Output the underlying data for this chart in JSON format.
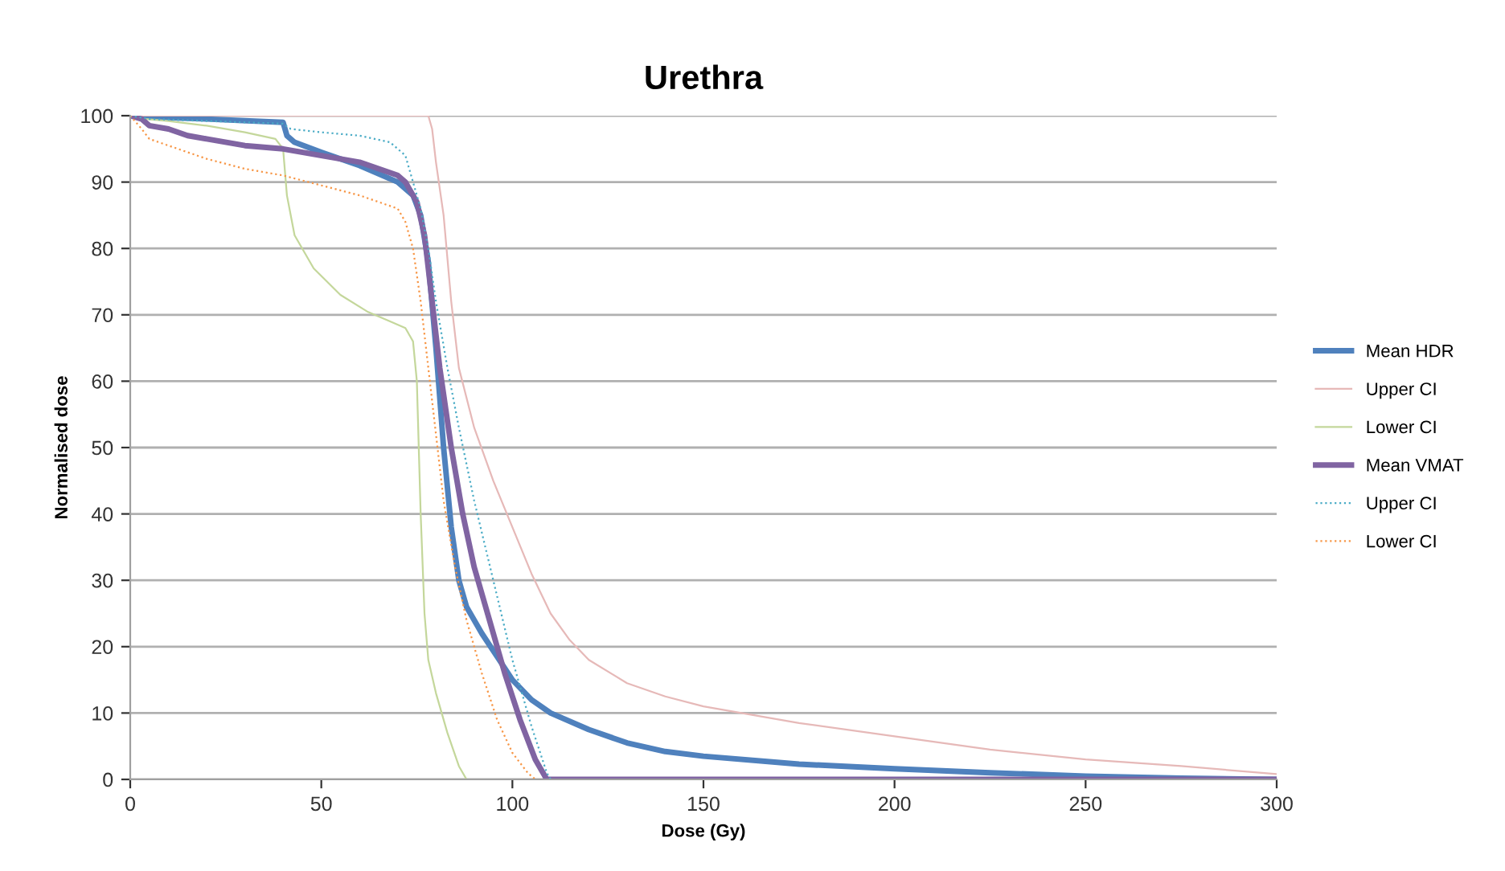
{
  "chart_data": {
    "type": "line",
    "title": "Urethra",
    "xlabel": "Dose (Gy)",
    "ylabel": "Normalised dose",
    "xlim": [
      0,
      300
    ],
    "xticks": [
      0,
      50,
      100,
      150,
      200,
      250,
      300
    ],
    "ylim": [
      0,
      100
    ],
    "yticks": [
      0,
      10,
      20,
      30,
      40,
      50,
      60,
      70,
      80,
      90,
      100
    ],
    "grid": "y",
    "legend": "right",
    "marker": "none",
    "series": [
      {
        "name": "Mean HDR",
        "color": "#4f81bd",
        "line_style": "solid",
        "x": [
          0,
          5,
          20,
          40,
          41,
          43,
          50,
          60,
          70,
          74,
          76,
          78,
          80,
          82,
          84,
          86,
          88,
          92,
          96,
          100,
          105,
          110,
          120,
          130,
          140,
          150,
          175,
          200,
          225,
          250,
          275,
          300
        ],
        "values": [
          100,
          99.8,
          99.5,
          99,
          97,
          96,
          94.5,
          92.5,
          90,
          88,
          85,
          78,
          65,
          50,
          38,
          30,
          26,
          22,
          18.5,
          15,
          12,
          10,
          7.5,
          5.5,
          4.2,
          3.5,
          2.3,
          1.6,
          1,
          0.5,
          0.2,
          0
        ]
      },
      {
        "name": "Upper CI",
        "color": "#e6b9b8",
        "line_style": "solid",
        "x": [
          0,
          5,
          78,
          79,
          80,
          82,
          84,
          86,
          90,
          95,
          100,
          105,
          110,
          115,
          120,
          130,
          140,
          150,
          175,
          200,
          225,
          250,
          275,
          300
        ],
        "values": [
          100,
          100,
          100,
          98,
          93,
          85,
          72,
          62,
          53,
          45,
          38,
          31,
          25,
          21,
          18,
          14.5,
          12.5,
          11,
          8.5,
          6.5,
          4.5,
          3,
          2,
          0.8
        ]
      },
      {
        "name": "Lower CI",
        "color": "#c4d79b",
        "line_style": "solid",
        "x": [
          0,
          4,
          10,
          20,
          30,
          38,
          40,
          41,
          43,
          48,
          55,
          62,
          68,
          72,
          74,
          75,
          76,
          77,
          78,
          80,
          83,
          86,
          88,
          300
        ],
        "values": [
          100,
          99.5,
          99.2,
          98.5,
          97.5,
          96.5,
          95,
          88,
          82,
          77,
          73,
          70.5,
          69,
          68,
          66,
          60,
          40,
          25,
          18,
          13,
          7,
          2,
          0,
          0
        ]
      },
      {
        "name": "Mean VMAT",
        "color": "#8064a2",
        "line_style": "solid",
        "x": [
          0,
          3,
          5,
          10,
          15,
          20,
          30,
          40,
          50,
          60,
          70,
          72,
          75,
          77,
          79,
          81,
          84,
          87,
          90,
          94,
          98,
          102,
          106,
          109,
          300
        ],
        "values": [
          100,
          99.5,
          98.5,
          98,
          97,
          96.5,
          95.5,
          95,
          94,
          93,
          91,
          90,
          87,
          82,
          72,
          62,
          50,
          40,
          32,
          24,
          16,
          9,
          3,
          0,
          0
        ]
      },
      {
        "name": "Upper CI",
        "color": "#4bacc6",
        "line_style": "dotted",
        "x": [
          0,
          5,
          40,
          42,
          50,
          60,
          68,
          72,
          74,
          76,
          78,
          80,
          83,
          86,
          90,
          95,
          100,
          105,
          109,
          110,
          300
        ],
        "values": [
          100,
          99.5,
          98.8,
          98,
          97.5,
          97,
          96,
          94,
          90,
          86,
          80,
          72,
          62,
          53,
          42,
          30,
          18,
          8,
          1,
          0,
          0
        ]
      },
      {
        "name": "Lower CI",
        "color": "#f79646",
        "line_style": "dotted",
        "x": [
          0,
          3,
          5,
          10,
          20,
          30,
          40,
          50,
          60,
          70,
          72,
          74,
          76,
          78,
          80,
          82,
          85,
          88,
          92,
          96,
          100,
          104,
          106,
          300
        ],
        "values": [
          100,
          98,
          96.5,
          95.5,
          93.5,
          92,
          91,
          89.5,
          88,
          86,
          84,
          80,
          72,
          62,
          52,
          42,
          32,
          24,
          16,
          9,
          4,
          1,
          0,
          0
        ]
      }
    ]
  }
}
